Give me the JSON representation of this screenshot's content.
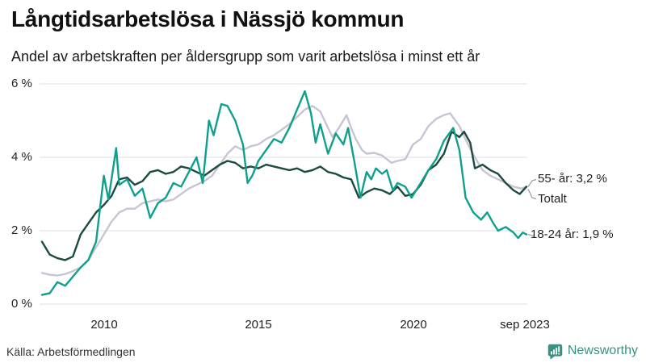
{
  "header": {
    "title": "Långtidsarbetslösa i Nässjö kommun",
    "subtitle": "Andel av arbetskraften per åldersgrupp som varit arbetslösa i minst ett år"
  },
  "footer": {
    "source": "Källa: Arbetsförmedlingen",
    "brand": "Newsworthy"
  },
  "colors": {
    "teal": "#0fa08d",
    "dark_green": "#1b4a41",
    "light_gray": "#c7c5d3",
    "grid": "#e4e2ea",
    "connector": "#999999",
    "brand_teal": "#389181",
    "text": "#222222"
  },
  "chart_data": {
    "type": "line",
    "title": "Långtidsarbetslösa i Nässjö kommun",
    "subtitle": "Andel av arbetskraften per åldersgrupp som varit arbetslösa i minst ett år",
    "unit": "%",
    "x_range": [
      2008,
      2023.67
    ],
    "y_range": [
      0,
      6
    ],
    "grid": "horizontal-only",
    "legend_position": "right-end-labels",
    "x_ticks": [
      {
        "t": 2010,
        "label": "2010"
      },
      {
        "t": 2015,
        "label": "2015"
      },
      {
        "t": 2020,
        "label": "2020"
      },
      {
        "t": 2023.67,
        "label": "sep 2023"
      }
    ],
    "y_ticks": [
      {
        "v": 6,
        "label": "6 %"
      },
      {
        "v": 4,
        "label": "4 %"
      },
      {
        "v": 2,
        "label": "2 %"
      },
      {
        "v": 0,
        "label": "0 %"
      }
    ],
    "series": [
      {
        "id": "totalt",
        "name": "Totalt",
        "end_label": "Totalt",
        "end_value": 3.2,
        "color": "#c7c5d3",
        "points": [
          [
            2008.0,
            0.85
          ],
          [
            2008.25,
            0.8
          ],
          [
            2008.5,
            0.78
          ],
          [
            2008.75,
            0.82
          ],
          [
            2009.0,
            0.9
          ],
          [
            2009.25,
            1.0
          ],
          [
            2009.5,
            1.2
          ],
          [
            2009.75,
            1.55
          ],
          [
            2010.0,
            1.9
          ],
          [
            2010.25,
            2.25
          ],
          [
            2010.5,
            2.5
          ],
          [
            2010.75,
            2.6
          ],
          [
            2011.0,
            2.6
          ],
          [
            2011.25,
            2.75
          ],
          [
            2011.5,
            2.8
          ],
          [
            2011.75,
            2.85
          ],
          [
            2012.0,
            2.8
          ],
          [
            2012.25,
            2.85
          ],
          [
            2012.5,
            3.0
          ],
          [
            2012.75,
            3.15
          ],
          [
            2013.0,
            3.25
          ],
          [
            2013.25,
            3.35
          ],
          [
            2013.5,
            3.5
          ],
          [
            2013.75,
            3.8
          ],
          [
            2014.0,
            4.1
          ],
          [
            2014.25,
            4.3
          ],
          [
            2014.5,
            4.2
          ],
          [
            2014.75,
            4.3
          ],
          [
            2015.0,
            4.35
          ],
          [
            2015.25,
            4.5
          ],
          [
            2015.5,
            4.6
          ],
          [
            2015.75,
            4.75
          ],
          [
            2016.0,
            4.9
          ],
          [
            2016.25,
            5.1
          ],
          [
            2016.5,
            5.3
          ],
          [
            2016.75,
            5.4
          ],
          [
            2017.0,
            5.25
          ],
          [
            2017.25,
            4.8
          ],
          [
            2017.4,
            4.55
          ],
          [
            2017.6,
            4.8
          ],
          [
            2017.85,
            5.15
          ],
          [
            2018.0,
            4.8
          ],
          [
            2018.15,
            4.5
          ],
          [
            2018.35,
            4.2
          ],
          [
            2018.5,
            4.1
          ],
          [
            2018.75,
            4.12
          ],
          [
            2019.0,
            4.05
          ],
          [
            2019.3,
            3.85
          ],
          [
            2019.5,
            3.9
          ],
          [
            2019.75,
            3.95
          ],
          [
            2020.0,
            4.35
          ],
          [
            2020.25,
            4.5
          ],
          [
            2020.5,
            4.85
          ],
          [
            2020.75,
            5.05
          ],
          [
            2021.0,
            5.15
          ],
          [
            2021.2,
            5.2
          ],
          [
            2021.5,
            4.85
          ],
          [
            2021.75,
            4.4
          ],
          [
            2022.0,
            4.0
          ],
          [
            2022.25,
            3.65
          ],
          [
            2022.5,
            3.5
          ],
          [
            2022.75,
            3.4
          ],
          [
            2023.0,
            3.3
          ],
          [
            2023.25,
            3.2
          ],
          [
            2023.5,
            3.15
          ],
          [
            2023.67,
            3.2
          ]
        ]
      },
      {
        "id": "55plus",
        "name": "55- år",
        "end_label": "55- år: 3,2 %",
        "end_value": 3.2,
        "color": "#1b4a41",
        "points": [
          [
            2008.0,
            1.7
          ],
          [
            2008.25,
            1.35
          ],
          [
            2008.5,
            1.25
          ],
          [
            2008.75,
            1.2
          ],
          [
            2009.0,
            1.3
          ],
          [
            2009.25,
            1.9
          ],
          [
            2009.5,
            2.2
          ],
          [
            2009.75,
            2.5
          ],
          [
            2010.0,
            2.7
          ],
          [
            2010.25,
            2.95
          ],
          [
            2010.5,
            3.4
          ],
          [
            2010.75,
            3.45
          ],
          [
            2011.0,
            3.25
          ],
          [
            2011.25,
            3.35
          ],
          [
            2011.5,
            3.6
          ],
          [
            2011.75,
            3.65
          ],
          [
            2012.0,
            3.55
          ],
          [
            2012.25,
            3.6
          ],
          [
            2012.5,
            3.75
          ],
          [
            2012.75,
            3.7
          ],
          [
            2013.0,
            3.6
          ],
          [
            2013.25,
            3.5
          ],
          [
            2013.5,
            3.65
          ],
          [
            2013.75,
            3.8
          ],
          [
            2014.0,
            3.9
          ],
          [
            2014.25,
            3.85
          ],
          [
            2014.5,
            3.7
          ],
          [
            2014.75,
            3.75
          ],
          [
            2015.0,
            3.7
          ],
          [
            2015.25,
            3.8
          ],
          [
            2015.5,
            3.75
          ],
          [
            2015.75,
            3.7
          ],
          [
            2016.0,
            3.65
          ],
          [
            2016.25,
            3.7
          ],
          [
            2016.5,
            3.6
          ],
          [
            2016.75,
            3.65
          ],
          [
            2017.0,
            3.75
          ],
          [
            2017.25,
            3.6
          ],
          [
            2017.5,
            3.55
          ],
          [
            2017.75,
            3.45
          ],
          [
            2018.0,
            3.4
          ],
          [
            2018.25,
            2.9
          ],
          [
            2018.5,
            3.05
          ],
          [
            2018.75,
            3.15
          ],
          [
            2019.0,
            3.1
          ],
          [
            2019.25,
            3.0
          ],
          [
            2019.5,
            3.2
          ],
          [
            2019.75,
            2.95
          ],
          [
            2020.0,
            3.0
          ],
          [
            2020.25,
            3.25
          ],
          [
            2020.5,
            3.65
          ],
          [
            2020.75,
            3.8
          ],
          [
            2021.0,
            4.1
          ],
          [
            2021.25,
            4.7
          ],
          [
            2021.5,
            4.55
          ],
          [
            2021.65,
            4.7
          ],
          [
            2021.85,
            4.4
          ],
          [
            2022.0,
            3.7
          ],
          [
            2022.25,
            3.8
          ],
          [
            2022.5,
            3.65
          ],
          [
            2022.75,
            3.55
          ],
          [
            2023.0,
            3.3
          ],
          [
            2023.25,
            3.1
          ],
          [
            2023.45,
            3.0
          ],
          [
            2023.67,
            3.2
          ]
        ]
      },
      {
        "id": "18-24",
        "name": "18-24 år",
        "end_label": "18-24 år: 1,9 %",
        "end_value": 1.9,
        "color": "#0fa08d",
        "points": [
          [
            2008.0,
            0.25
          ],
          [
            2008.25,
            0.3
          ],
          [
            2008.5,
            0.6
          ],
          [
            2008.75,
            0.5
          ],
          [
            2009.0,
            0.75
          ],
          [
            2009.25,
            1.0
          ],
          [
            2009.5,
            1.2
          ],
          [
            2009.75,
            1.7
          ],
          [
            2010.0,
            3.5
          ],
          [
            2010.15,
            2.85
          ],
          [
            2010.4,
            4.25
          ],
          [
            2010.5,
            3.25
          ],
          [
            2010.75,
            3.4
          ],
          [
            2011.0,
            2.95
          ],
          [
            2011.25,
            3.15
          ],
          [
            2011.5,
            2.35
          ],
          [
            2011.75,
            2.75
          ],
          [
            2012.0,
            2.9
          ],
          [
            2012.25,
            3.3
          ],
          [
            2012.5,
            3.2
          ],
          [
            2012.75,
            3.6
          ],
          [
            2013.0,
            4.0
          ],
          [
            2013.2,
            3.3
          ],
          [
            2013.4,
            5.0
          ],
          [
            2013.55,
            4.6
          ],
          [
            2013.8,
            5.45
          ],
          [
            2014.0,
            5.4
          ],
          [
            2014.25,
            5.0
          ],
          [
            2014.5,
            4.35
          ],
          [
            2014.65,
            3.3
          ],
          [
            2014.8,
            3.5
          ],
          [
            2015.0,
            3.9
          ],
          [
            2015.25,
            4.2
          ],
          [
            2015.5,
            4.5
          ],
          [
            2015.75,
            4.4
          ],
          [
            2016.0,
            4.8
          ],
          [
            2016.25,
            5.3
          ],
          [
            2016.5,
            5.8
          ],
          [
            2016.7,
            5.2
          ],
          [
            2016.85,
            4.4
          ],
          [
            2017.0,
            4.9
          ],
          [
            2017.25,
            4.1
          ],
          [
            2017.5,
            4.65
          ],
          [
            2017.75,
            4.35
          ],
          [
            2017.9,
            4.8
          ],
          [
            2018.1,
            3.9
          ],
          [
            2018.3,
            2.9
          ],
          [
            2018.5,
            3.6
          ],
          [
            2018.65,
            3.4
          ],
          [
            2018.8,
            3.7
          ],
          [
            2019.0,
            3.55
          ],
          [
            2019.15,
            3.65
          ],
          [
            2019.35,
            3.1
          ],
          [
            2019.5,
            3.3
          ],
          [
            2019.75,
            3.2
          ],
          [
            2019.95,
            2.9
          ],
          [
            2020.25,
            3.3
          ],
          [
            2020.5,
            3.65
          ],
          [
            2020.75,
            3.95
          ],
          [
            2021.0,
            4.45
          ],
          [
            2021.3,
            4.8
          ],
          [
            2021.5,
            4.2
          ],
          [
            2021.7,
            2.9
          ],
          [
            2021.95,
            2.5
          ],
          [
            2022.2,
            2.3
          ],
          [
            2022.4,
            2.5
          ],
          [
            2022.6,
            2.2
          ],
          [
            2022.75,
            2.0
          ],
          [
            2023.0,
            2.1
          ],
          [
            2023.25,
            1.95
          ],
          [
            2023.4,
            1.8
          ],
          [
            2023.55,
            1.95
          ],
          [
            2023.67,
            1.9
          ]
        ]
      }
    ]
  }
}
